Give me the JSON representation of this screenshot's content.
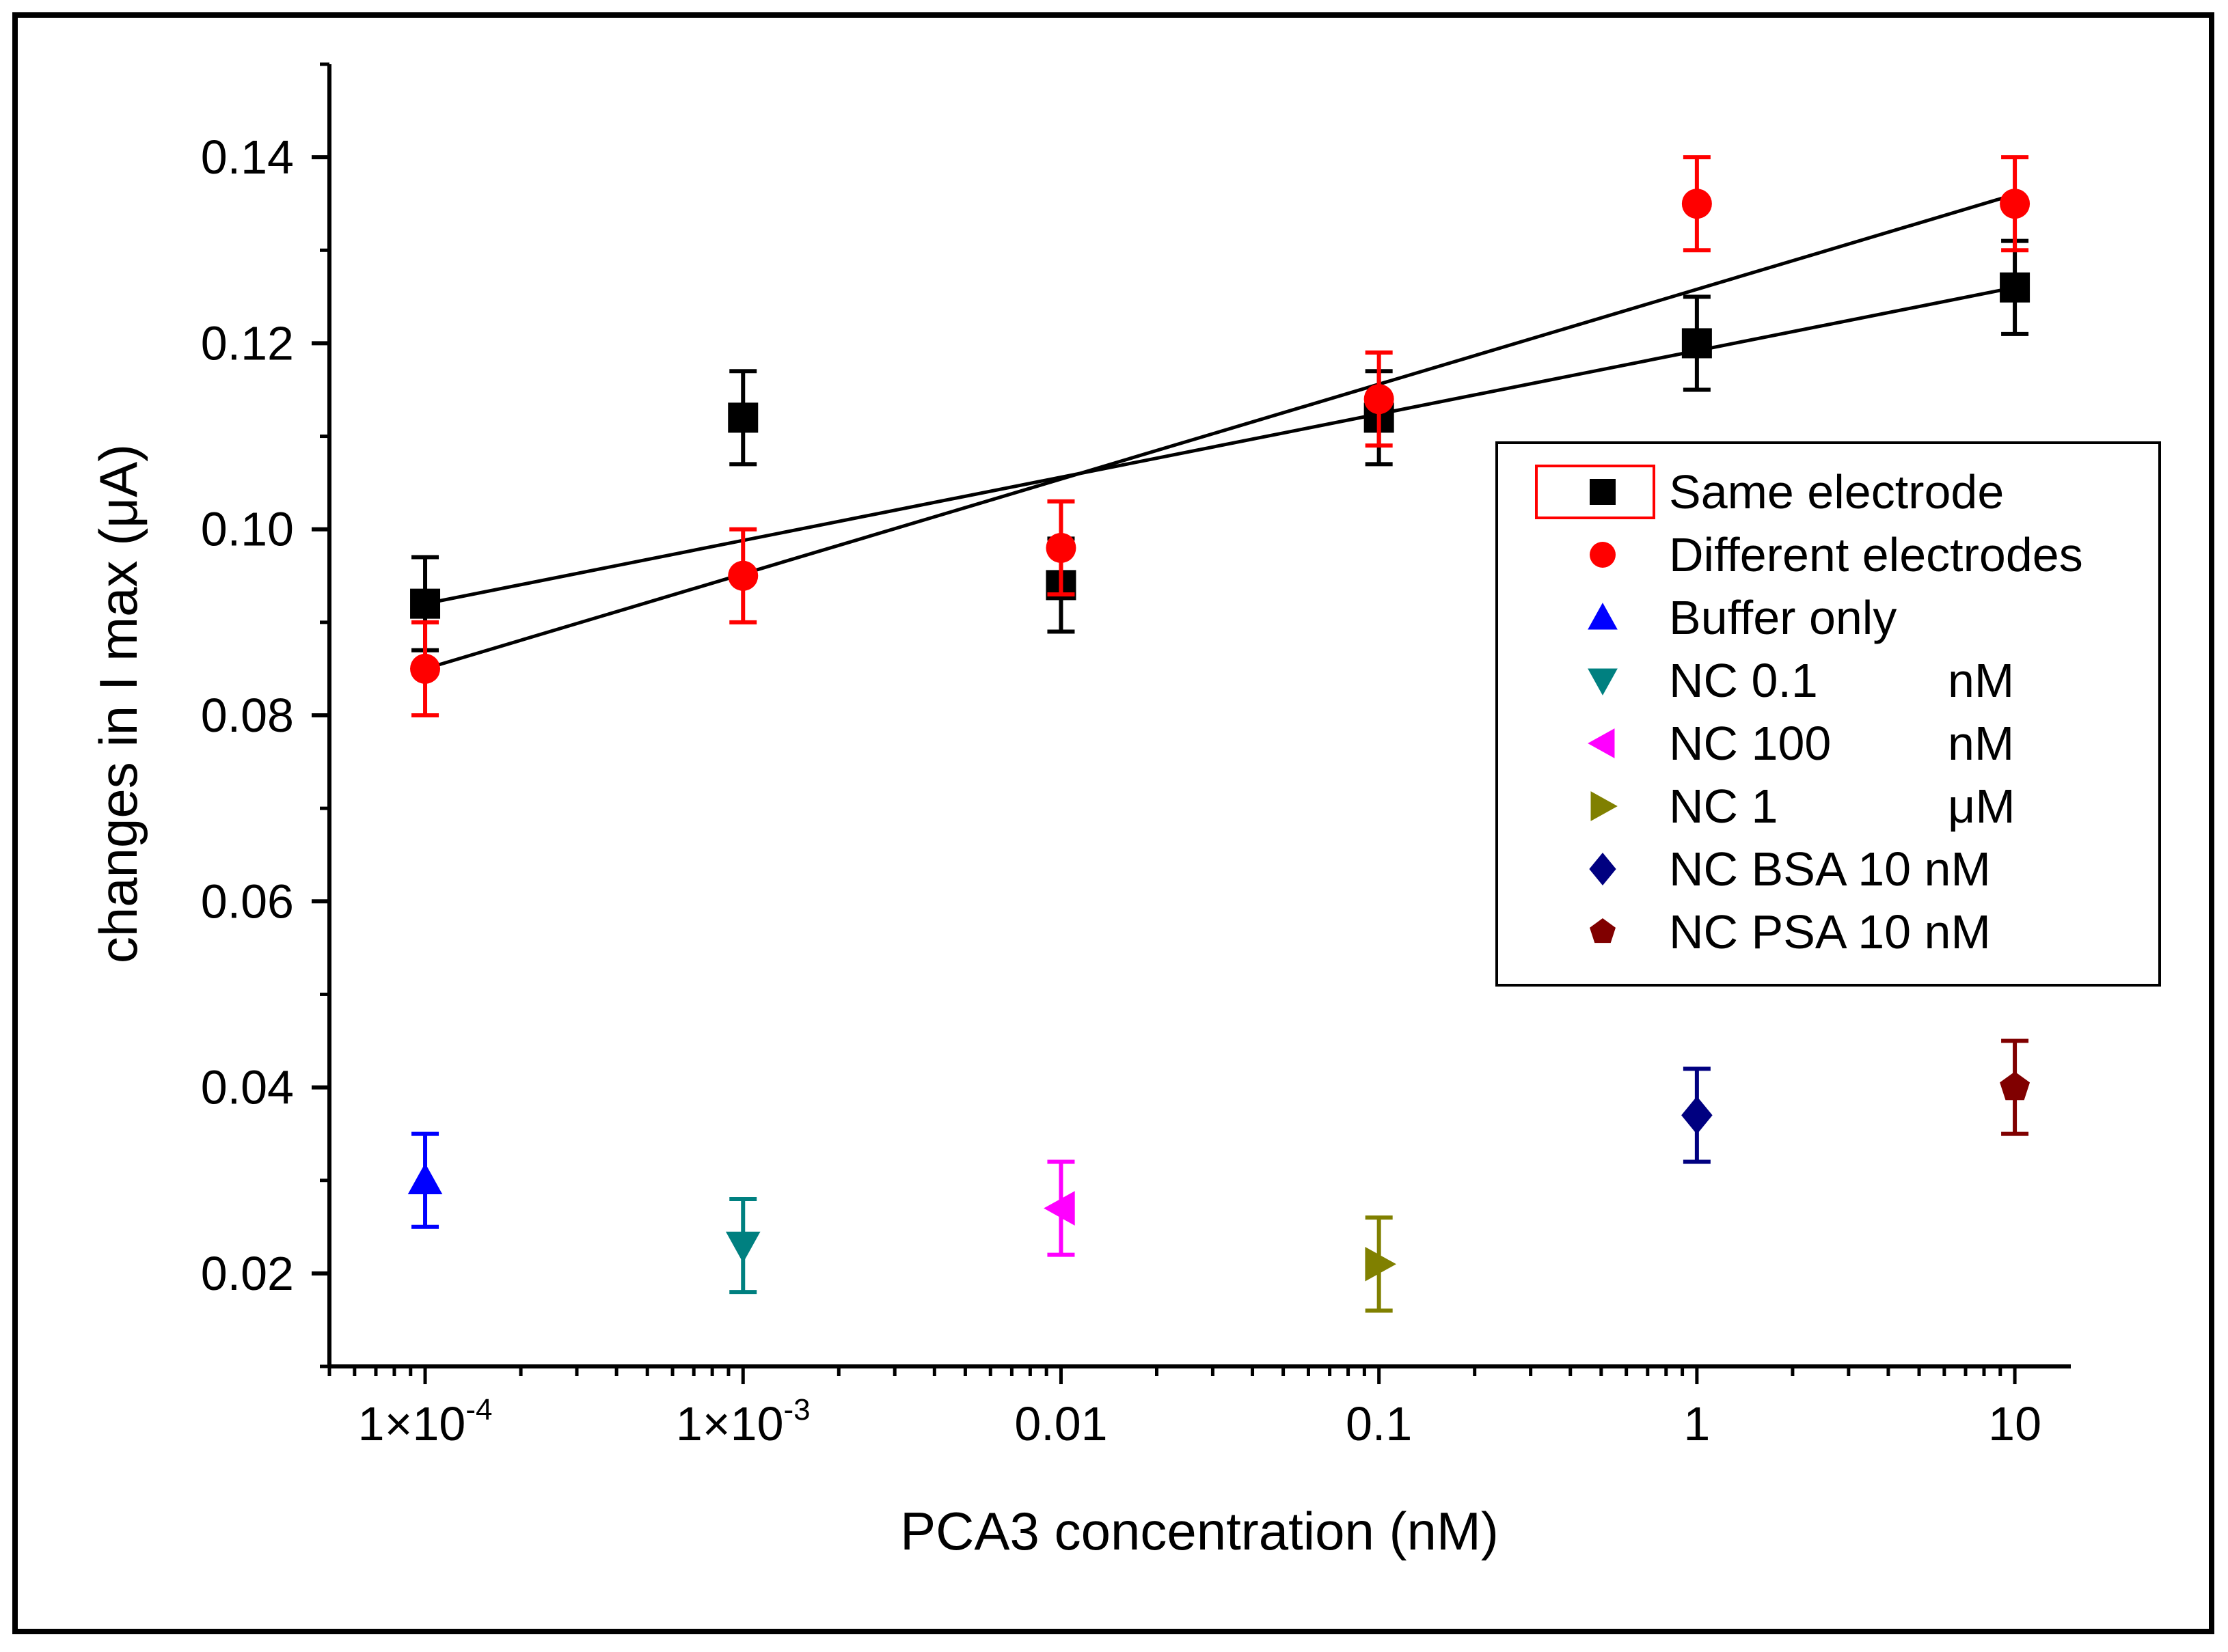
{
  "chart_data": {
    "type": "scatter",
    "title": "",
    "xlabel": "PCA3 concentration (nM)",
    "ylabel": "changes in I max (μA)",
    "xscale": "log",
    "xlim": [
      5e-05,
      15
    ],
    "ylim": [
      0.01,
      0.15
    ],
    "grid": false,
    "legend_position": "right-middle",
    "x_ticks": [
      {
        "value": 0.0001,
        "label": "1×10",
        "exp": "-4"
      },
      {
        "value": 0.001,
        "label": "1×10",
        "exp": "-3"
      },
      {
        "value": 0.01,
        "label": "0.01",
        "exp": ""
      },
      {
        "value": 0.1,
        "label": "0.1",
        "exp": ""
      },
      {
        "value": 1,
        "label": "1",
        "exp": ""
      },
      {
        "value": 10,
        "label": "10",
        "exp": ""
      }
    ],
    "y_ticks": [
      {
        "value": 0.02,
        "label": "0.02"
      },
      {
        "value": 0.04,
        "label": "0.04"
      },
      {
        "value": 0.06,
        "label": "0.06"
      },
      {
        "value": 0.08,
        "label": "0.08"
      },
      {
        "value": 0.1,
        "label": "0.10"
      },
      {
        "value": 0.12,
        "label": "0.12"
      },
      {
        "value": 0.14,
        "label": "0.14"
      }
    ],
    "series": [
      {
        "name": "Same electrode",
        "marker": "square",
        "color": "#000000",
        "errcolor": "#000000",
        "x": [
          0.0001,
          0.001,
          0.01,
          0.1,
          1,
          10
        ],
        "y": [
          0.092,
          0.112,
          0.094,
          0.112,
          0.12,
          0.126
        ],
        "err": [
          0.005,
          0.005,
          0.005,
          0.005,
          0.005,
          0.005
        ],
        "fit": {
          "x": [
            0.0001,
            10
          ],
          "y": [
            0.092,
            0.126
          ]
        }
      },
      {
        "name": "Different electrodes",
        "marker": "circle",
        "color": "#ff0000",
        "errcolor": "#ff0000",
        "x": [
          0.0001,
          0.001,
          0.01,
          0.1,
          1,
          10
        ],
        "y": [
          0.085,
          0.095,
          0.098,
          0.114,
          0.135,
          0.135
        ],
        "err": [
          0.005,
          0.005,
          0.005,
          0.005,
          0.005,
          0.005
        ],
        "fit": {
          "x": [
            0.0001,
            10
          ],
          "y": [
            0.085,
            0.136
          ]
        }
      },
      {
        "name": "Buffer only",
        "marker": "triangle-up",
        "color": "#0000ff",
        "errcolor": "#0000ff",
        "x": [
          0.0001
        ],
        "y": [
          0.03
        ],
        "err": [
          0.005
        ]
      },
      {
        "name": "NC 0.1",
        "unit": "nM",
        "marker": "triangle-down",
        "color": "#008080",
        "errcolor": "#008080",
        "x": [
          0.001
        ],
        "y": [
          0.023
        ],
        "err": [
          0.005
        ]
      },
      {
        "name": "NC 100",
        "unit": "nM",
        "marker": "triangle-left",
        "color": "#ff00ff",
        "errcolor": "#ff00ff",
        "x": [
          0.01
        ],
        "y": [
          0.027
        ],
        "err": [
          0.005
        ]
      },
      {
        "name": "NC 1",
        "unit": "μM",
        "marker": "triangle-right",
        "color": "#808000",
        "errcolor": "#808000",
        "x": [
          0.1
        ],
        "y": [
          0.021
        ],
        "err": [
          0.005
        ]
      },
      {
        "name": "NC BSA 10 nM",
        "marker": "diamond",
        "color": "#000080",
        "errcolor": "#000080",
        "x": [
          1
        ],
        "y": [
          0.037
        ],
        "err": [
          0.005
        ]
      },
      {
        "name": "NC PSA 10 nM",
        "marker": "pentagon",
        "color": "#800000",
        "errcolor": "#800000",
        "x": [
          10
        ],
        "y": [
          0.04
        ],
        "err": [
          0.005
        ]
      }
    ]
  }
}
